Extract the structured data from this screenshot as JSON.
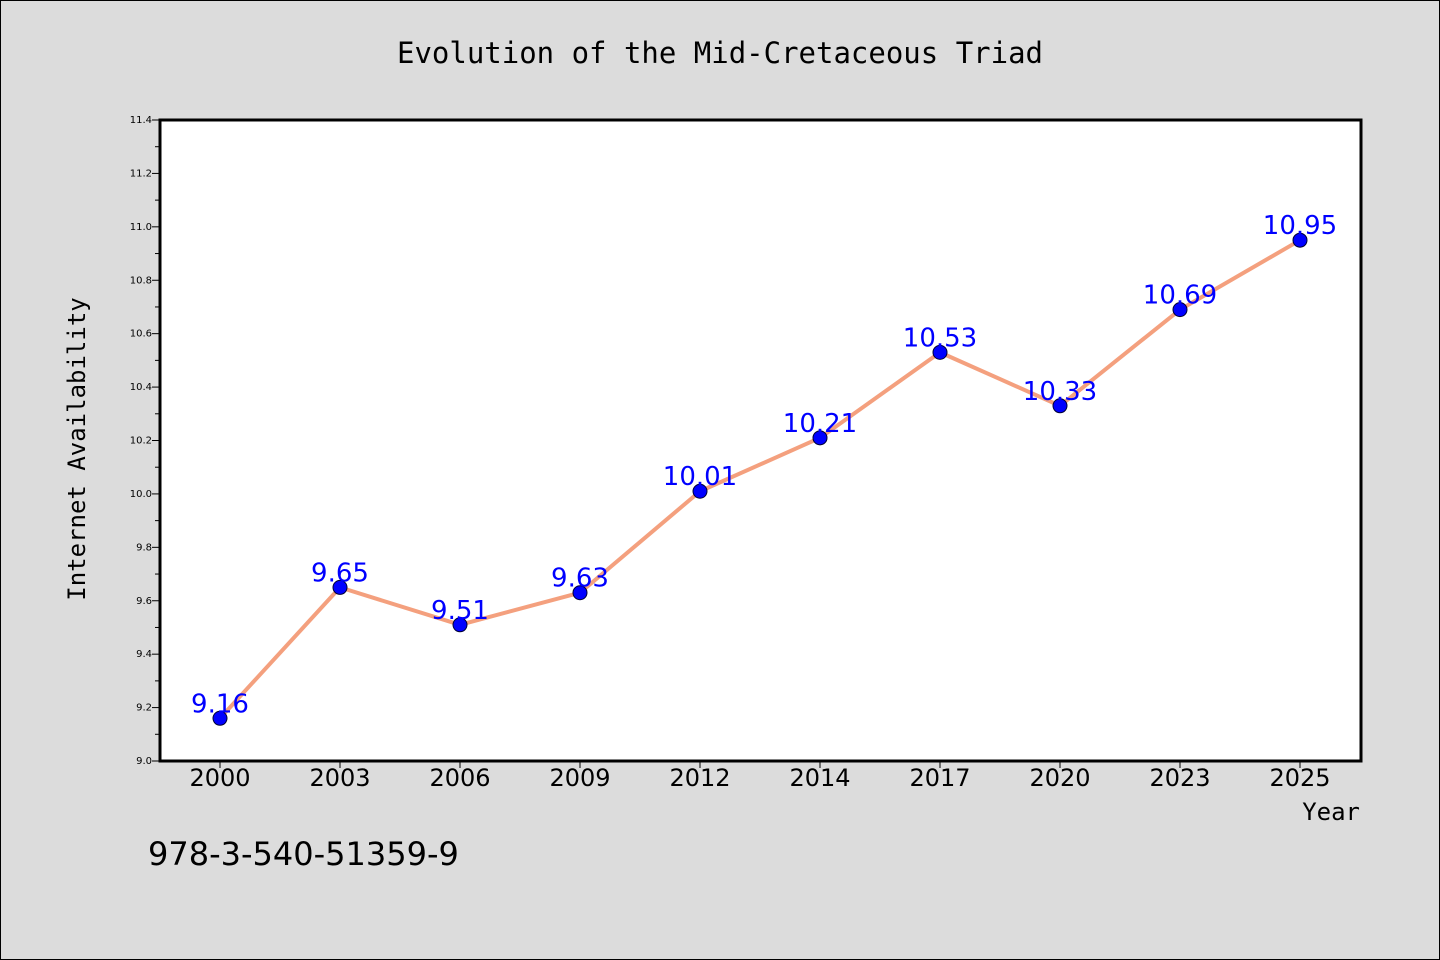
{
  "chart_data": {
    "type": "line",
    "title": "Evolution of the Mid-Cretaceous Triad",
    "xlabel": "Year",
    "ylabel": "Internet Availability",
    "categories": [
      "2000",
      "2003",
      "2006",
      "2009",
      "2012",
      "2014",
      "2017",
      "2020",
      "2023",
      "2025"
    ],
    "values": [
      9.16,
      9.65,
      9.51,
      9.63,
      10.01,
      10.21,
      10.53,
      10.33,
      10.69,
      10.95
    ],
    "data_labels": [
      "9.16",
      "9.65",
      "9.51",
      "9.63",
      "10.01",
      "10.21",
      "10.53",
      "10.33",
      "10.69",
      "10.95"
    ],
    "ylim": [
      9.0,
      11.4
    ],
    "yticks": [
      "9.0",
      "9.2",
      "9.4",
      "9.6",
      "9.8",
      "10.0",
      "10.2",
      "10.4",
      "10.6",
      "10.8",
      "11.0",
      "11.2",
      "11.4"
    ],
    "grid": false,
    "line_color": "#f4a07e",
    "marker_color": "#0000ff",
    "label_color": "#0000ff"
  },
  "footer": {
    "text": "978-3-540-51359-9"
  }
}
